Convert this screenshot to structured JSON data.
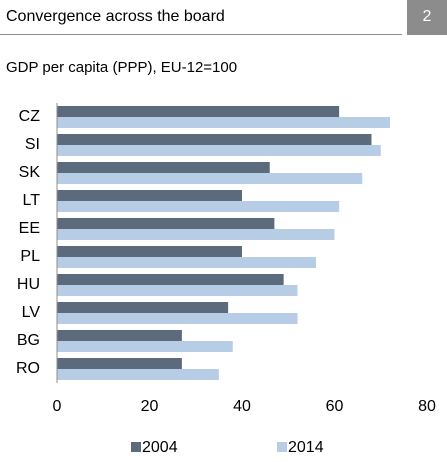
{
  "header": {
    "title": "Convergence across the board",
    "number": "2"
  },
  "chart_data": {
    "type": "hbar",
    "subtitle": "GDP per capita (PPP), EU-12=100",
    "categories": [
      "CZ",
      "SI",
      "SK",
      "LT",
      "EE",
      "PL",
      "HU",
      "LV",
      "BG",
      "RO"
    ],
    "series": [
      {
        "name": "2004",
        "color": "#5b6b7c",
        "values": [
          61,
          68,
          46,
          40,
          47,
          40,
          49,
          37,
          27,
          27
        ]
      },
      {
        "name": "2014",
        "color": "#b7cde6",
        "values": [
          72,
          70,
          66,
          61,
          60,
          56,
          52,
          52,
          38,
          35
        ]
      }
    ],
    "xlim": [
      0,
      80
    ],
    "xticks": [
      0,
      20,
      40,
      60,
      80
    ],
    "grid": false,
    "legend": "bottom"
  }
}
